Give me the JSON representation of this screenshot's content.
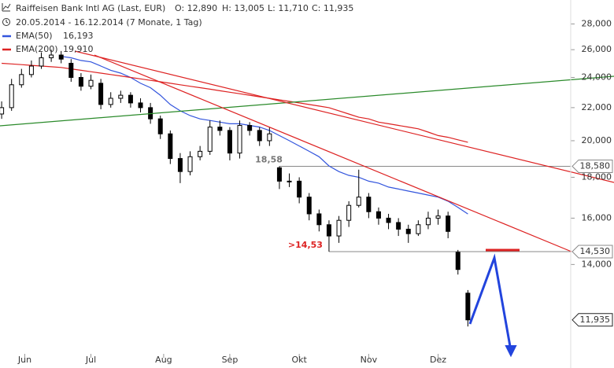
{
  "chart_data": {
    "type": "candlestick",
    "header": {
      "instrument": "Raiffeisen Bank Intl AG (Last, EUR)",
      "ohlc": [
        "O: 12,890",
        "H: 13,005",
        "L: 11,710",
        "C: 11,935"
      ],
      "range": "20.05.2014 - 16.12.2014 (7 Monate, 1 Tag)"
    },
    "log_scale": true,
    "grid": false,
    "color": "#000000",
    "x": [
      0,
      3,
      6,
      9,
      12,
      15,
      18,
      21,
      24,
      27,
      30,
      33,
      36,
      39,
      42,
      45,
      48,
      51,
      54,
      57,
      60,
      63,
      66,
      69,
      72,
      75,
      78,
      81,
      84,
      87,
      90,
      93,
      96,
      99,
      102,
      105,
      108,
      111,
      114,
      117,
      120,
      123,
      126,
      129,
      132,
      135,
      138,
      141
    ],
    "open": [
      21.6,
      22.0,
      23.5,
      24.2,
      24.8,
      25.4,
      25.6,
      25.0,
      24.0,
      23.4,
      23.6,
      22.2,
      22.6,
      22.8,
      22.3,
      22.0,
      21.3,
      20.4,
      19.0,
      18.3,
      19.1,
      19.4,
      20.8,
      20.6,
      19.3,
      20.9,
      20.6,
      20.0,
      18.5,
      17.8,
      17.8,
      17.0,
      16.2,
      15.7,
      15.2,
      15.9,
      16.6,
      17.0,
      16.3,
      16.0,
      15.8,
      15.5,
      15.3,
      15.7,
      16.0,
      16.1,
      14.5,
      12.89
    ],
    "high": [
      22.4,
      23.9,
      24.6,
      25.2,
      25.8,
      26.0,
      25.9,
      25.3,
      24.3,
      24.2,
      23.9,
      23.0,
      23.1,
      23.0,
      22.6,
      22.3,
      21.5,
      20.6,
      19.3,
      19.4,
      19.7,
      21.2,
      21.2,
      20.8,
      21.2,
      21.1,
      20.8,
      20.8,
      18.58,
      18.2,
      18.0,
      17.2,
      16.4,
      15.9,
      16.1,
      16.8,
      18.4,
      17.2,
      16.5,
      16.2,
      16.0,
      15.7,
      15.9,
      16.3,
      16.4,
      16.3,
      14.6,
      13.005
    ],
    "low": [
      21.3,
      21.8,
      23.3,
      24.0,
      24.6,
      25.1,
      25.0,
      23.7,
      23.1,
      23.2,
      21.9,
      22.0,
      22.3,
      22.0,
      21.7,
      21.0,
      20.1,
      18.7,
      17.7,
      18.1,
      18.9,
      19.2,
      20.3,
      18.9,
      19.0,
      20.3,
      19.7,
      19.7,
      17.4,
      17.5,
      16.7,
      15.9,
      15.4,
      14.53,
      14.9,
      15.6,
      16.5,
      16.0,
      15.7,
      15.5,
      15.2,
      14.9,
      15.2,
      15.5,
      15.7,
      15.1,
      13.6,
      11.71
    ],
    "close": [
      22.0,
      23.5,
      24.2,
      24.8,
      25.4,
      25.6,
      25.3,
      24.0,
      23.4,
      23.8,
      22.2,
      22.6,
      22.8,
      22.3,
      22.0,
      21.3,
      20.4,
      19.0,
      18.3,
      19.1,
      19.4,
      20.8,
      20.6,
      19.3,
      20.9,
      20.6,
      20.0,
      20.4,
      17.8,
      17.8,
      17.0,
      16.2,
      15.7,
      15.2,
      15.9,
      16.6,
      17.0,
      16.3,
      16.0,
      15.8,
      15.5,
      15.3,
      15.7,
      16.0,
      16.1,
      15.4,
      13.8,
      11.935
    ],
    "series": [
      {
        "name": "EMA(50)",
        "last_label": "16,193",
        "color": "#3355dd",
        "values": [
          null,
          null,
          null,
          null,
          null,
          null,
          25.5,
          25.4,
          25.2,
          25.1,
          24.8,
          24.5,
          24.3,
          24.0,
          23.6,
          23.3,
          22.8,
          22.2,
          21.8,
          21.5,
          21.3,
          21.2,
          21.1,
          21.0,
          21.0,
          20.9,
          20.8,
          20.6,
          20.3,
          20.0,
          19.7,
          19.4,
          19.1,
          18.6,
          18.3,
          18.1,
          18.0,
          17.8,
          17.7,
          17.5,
          17.4,
          17.3,
          17.2,
          17.1,
          17.0,
          16.8,
          16.5,
          16.193
        ]
      },
      {
        "name": "EMA(200)",
        "last_label": "19,910",
        "color": "#dd2222",
        "values": [
          25.0,
          24.95,
          24.9,
          24.85,
          24.8,
          24.75,
          24.7,
          24.6,
          24.5,
          24.4,
          24.3,
          24.2,
          24.1,
          24.0,
          23.9,
          23.8,
          23.7,
          23.6,
          23.5,
          23.4,
          23.3,
          23.2,
          23.1,
          23.0,
          22.9,
          22.8,
          22.7,
          22.6,
          22.5,
          22.4,
          22.3,
          22.2,
          22.1,
          22.0,
          21.8,
          21.6,
          21.4,
          21.3,
          21.1,
          21.0,
          20.9,
          20.8,
          20.7,
          20.5,
          20.3,
          20.2,
          20.05,
          19.91
        ]
      }
    ],
    "xlim": [
      -0.5,
      172.1
    ],
    "xticks": [
      {
        "value": 7,
        "label": "Jun"
      },
      {
        "value": 27,
        "label": "Jul"
      },
      {
        "value": 49,
        "label": "Aug"
      },
      {
        "value": 69,
        "label": "Sep"
      },
      {
        "value": 90,
        "label": "Okt"
      },
      {
        "value": 111,
        "label": "Nov"
      },
      {
        "value": 132,
        "label": "Dez"
      }
    ],
    "ylim": [
      10.7,
      30
    ],
    "yticks": [
      {
        "value": 14,
        "label": "14,000"
      },
      {
        "value": 16,
        "label": "16,000"
      },
      {
        "value": 18,
        "label": "18,000"
      },
      {
        "value": 20,
        "label": "20,000"
      },
      {
        "value": 22,
        "label": "22,000"
      },
      {
        "value": 24,
        "label": "24,000"
      },
      {
        "value": 26,
        "label": "26,000"
      },
      {
        "value": 28,
        "label": "28,000"
      }
    ],
    "levels": [
      {
        "value": 18.58,
        "label": "18,580"
      },
      {
        "value": 14.53,
        "label": "14,530"
      }
    ],
    "last_price": {
      "value": 11.935,
      "label": "11,935"
    },
    "annotations": [
      {
        "text": "18,58",
        "color": "#777777"
      },
      {
        "text": ">14,53",
        "color": "#dd2222"
      }
    ]
  }
}
